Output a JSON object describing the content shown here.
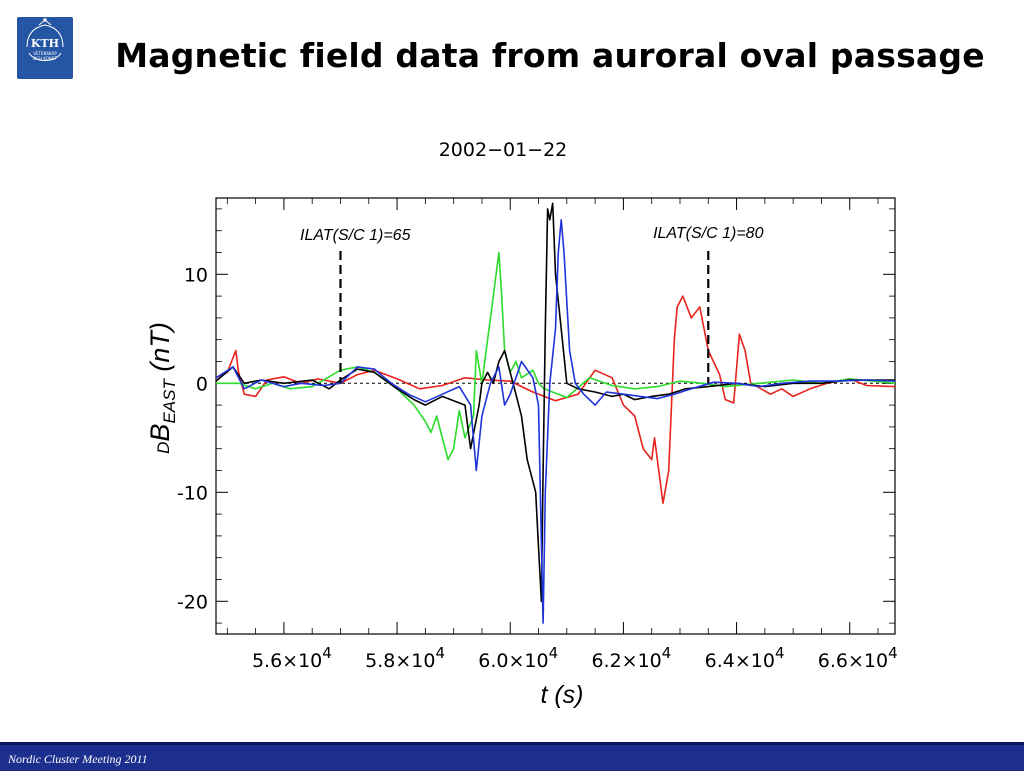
{
  "slide": {
    "title": "Magnetic field data from auroral oval passage",
    "footer": "Nordic Cluster Meeting 2011"
  },
  "logo": {
    "text": "KTH",
    "subtext_1": "VETENSKAP",
    "subtext_2": "OCH KONST"
  },
  "colors": {
    "footer_bg": "#1c2f8f",
    "logo_bg": "#2456a3"
  },
  "chart_data": {
    "type": "line",
    "title": "2002−01−22",
    "xlabel": "t (s)",
    "ylabel_prefix": "D",
    "ylabel_main": "B",
    "ylabel_sub": "EAST",
    "ylabel_unit": " (nT)",
    "xlim": [
      54800,
      66800
    ],
    "ylim": [
      -23,
      17
    ],
    "x_ticks": [
      {
        "value": 56000,
        "label": "5.6×10",
        "exp": "4"
      },
      {
        "value": 58000,
        "label": "5.8×10",
        "exp": "4"
      },
      {
        "value": 60000,
        "label": "6.0×10",
        "exp": "4"
      },
      {
        "value": 62000,
        "label": "6.2×10",
        "exp": "4"
      },
      {
        "value": 64000,
        "label": "6.4×10",
        "exp": "4"
      },
      {
        "value": 66000,
        "label": "6.6×10",
        "exp": "4"
      }
    ],
    "y_ticks": [
      {
        "value": 10,
        "label": "10"
      },
      {
        "value": 0,
        "label": "0"
      },
      {
        "value": -10,
        "label": "-10"
      },
      {
        "value": -20,
        "label": "-20"
      }
    ],
    "zero_line": true,
    "annotations": [
      {
        "text": "ILAT(S/C 1)=65",
        "x": 57000
      },
      {
        "text": "ILAT(S/C 1)=80",
        "x": 63500
      }
    ],
    "series": [
      {
        "color": "#e8231d",
        "points": [
          [
            54800,
            0.5
          ],
          [
            55000,
            1
          ],
          [
            55150,
            3
          ],
          [
            55200,
            1
          ],
          [
            55300,
            -1
          ],
          [
            55500,
            -1.2
          ],
          [
            55700,
            0.3
          ],
          [
            56000,
            0.6
          ],
          [
            56300,
            0
          ],
          [
            56600,
            0.4
          ],
          [
            57000,
            0
          ],
          [
            57300,
            0.8
          ],
          [
            57600,
            1.2
          ],
          [
            58000,
            0.4
          ],
          [
            58400,
            -0.5
          ],
          [
            58800,
            -0.2
          ],
          [
            59200,
            0.5
          ],
          [
            59600,
            0.3
          ],
          [
            60000,
            0.2
          ],
          [
            60400,
            -0.8
          ],
          [
            60800,
            -1.6
          ],
          [
            61200,
            -1.0
          ],
          [
            61500,
            1.2
          ],
          [
            61800,
            0.5
          ],
          [
            62000,
            -2
          ],
          [
            62200,
            -3
          ],
          [
            62350,
            -6
          ],
          [
            62500,
            -7
          ],
          [
            62550,
            -5
          ],
          [
            62700,
            -11
          ],
          [
            62800,
            -8
          ],
          [
            62850,
            -2
          ],
          [
            62900,
            4
          ],
          [
            62950,
            7
          ],
          [
            63050,
            8
          ],
          [
            63200,
            6
          ],
          [
            63350,
            7
          ],
          [
            63500,
            3
          ],
          [
            63700,
            0.8
          ],
          [
            63800,
            -1.5
          ],
          [
            63950,
            -1.8
          ],
          [
            64050,
            4.5
          ],
          [
            64150,
            3
          ],
          [
            64250,
            0
          ],
          [
            64400,
            -0.4
          ],
          [
            64600,
            -1
          ],
          [
            64800,
            -0.5
          ],
          [
            65000,
            -1.2
          ],
          [
            65300,
            -0.5
          ],
          [
            65600,
            0
          ],
          [
            66000,
            0.4
          ],
          [
            66300,
            -0.2
          ],
          [
            66800,
            -0.3
          ]
        ]
      },
      {
        "color": "#2ddc2d",
        "points": [
          [
            54800,
            0
          ],
          [
            55200,
            0
          ],
          [
            55500,
            -0.5
          ],
          [
            55800,
            0
          ],
          [
            56100,
            -0.5
          ],
          [
            56500,
            -0.3
          ],
          [
            57000,
            1.2
          ],
          [
            57300,
            1.5
          ],
          [
            57600,
            1
          ],
          [
            58000,
            -0.5
          ],
          [
            58300,
            -2
          ],
          [
            58500,
            -3.5
          ],
          [
            58600,
            -4.5
          ],
          [
            58700,
            -3
          ],
          [
            58800,
            -5
          ],
          [
            58900,
            -7
          ],
          [
            59000,
            -6
          ],
          [
            59100,
            -2.5
          ],
          [
            59200,
            -5
          ],
          [
            59350,
            -3
          ],
          [
            59400,
            3
          ],
          [
            59500,
            0
          ],
          [
            59600,
            4
          ],
          [
            59700,
            8
          ],
          [
            59800,
            12
          ],
          [
            59850,
            8
          ],
          [
            59900,
            3
          ],
          [
            60000,
            1
          ],
          [
            60100,
            2
          ],
          [
            60200,
            0.5
          ],
          [
            60400,
            1.2
          ],
          [
            60500,
            0
          ],
          [
            60600,
            -0.5
          ],
          [
            61000,
            -1.3
          ],
          [
            61400,
            0.5
          ],
          [
            61800,
            -0.2
          ],
          [
            62200,
            -0.5
          ],
          [
            62600,
            -0.3
          ],
          [
            63000,
            0.2
          ],
          [
            63400,
            0
          ],
          [
            63800,
            -0.3
          ],
          [
            64400,
            0
          ],
          [
            65000,
            0.3
          ],
          [
            65500,
            0
          ],
          [
            66000,
            0.4
          ],
          [
            66800,
            0
          ]
        ]
      },
      {
        "color": "#000000",
        "points": [
          [
            54800,
            0.2
          ],
          [
            55100,
            1.5
          ],
          [
            55300,
            0
          ],
          [
            55600,
            0.3
          ],
          [
            56000,
            0
          ],
          [
            56500,
            0.3
          ],
          [
            56800,
            -0.5
          ],
          [
            57000,
            0.3
          ],
          [
            57300,
            1.3
          ],
          [
            57600,
            1
          ],
          [
            58000,
            -0.5
          ],
          [
            58300,
            -1.5
          ],
          [
            58500,
            -2
          ],
          [
            58800,
            -1.2
          ],
          [
            59200,
            -2
          ],
          [
            59300,
            -6
          ],
          [
            59450,
            -2
          ],
          [
            59500,
            0
          ],
          [
            59600,
            1
          ],
          [
            59700,
            0
          ],
          [
            59800,
            2
          ],
          [
            59900,
            3
          ],
          [
            60000,
            1
          ],
          [
            60100,
            -1
          ],
          [
            60200,
            -3
          ],
          [
            60300,
            -7
          ],
          [
            60400,
            -9
          ],
          [
            60450,
            -10
          ],
          [
            60500,
            -15
          ],
          [
            60550,
            -20
          ],
          [
            60580,
            -8
          ],
          [
            60620,
            5
          ],
          [
            60660,
            16
          ],
          [
            60700,
            15
          ],
          [
            60750,
            16.5
          ],
          [
            60800,
            10
          ],
          [
            60900,
            5
          ],
          [
            61000,
            0
          ],
          [
            61200,
            -0.5
          ],
          [
            61500,
            -0.8
          ],
          [
            61800,
            -1.2
          ],
          [
            62000,
            -1
          ],
          [
            62200,
            -1.5
          ],
          [
            62500,
            -1.2
          ],
          [
            62800,
            -1
          ],
          [
            63100,
            -0.5
          ],
          [
            63500,
            -0.3
          ],
          [
            64000,
            0
          ],
          [
            64500,
            -0.3
          ],
          [
            65000,
            0
          ],
          [
            65500,
            0
          ],
          [
            66000,
            0.3
          ],
          [
            66800,
            0.3
          ]
        ]
      },
      {
        "color": "#1f34d9",
        "points": [
          [
            54800,
            0.5
          ],
          [
            55100,
            1.5
          ],
          [
            55300,
            -0.5
          ],
          [
            55600,
            0.3
          ],
          [
            56000,
            -0.3
          ],
          [
            56300,
            0
          ],
          [
            56700,
            -0.2
          ],
          [
            57000,
            0
          ],
          [
            57300,
            1.5
          ],
          [
            57600,
            1.3
          ],
          [
            57900,
            0
          ],
          [
            58200,
            -1
          ],
          [
            58500,
            -1.7
          ],
          [
            58800,
            -1
          ],
          [
            59100,
            -0.3
          ],
          [
            59300,
            -2
          ],
          [
            59400,
            -8
          ],
          [
            59500,
            -3
          ],
          [
            59650,
            0
          ],
          [
            59800,
            1.5
          ],
          [
            59900,
            -2
          ],
          [
            60000,
            -1
          ],
          [
            60100,
            0.5
          ],
          [
            60200,
            2
          ],
          [
            60400,
            0.5
          ],
          [
            60500,
            -2
          ],
          [
            60580,
            -22
          ],
          [
            60620,
            -10
          ],
          [
            60700,
            0
          ],
          [
            60800,
            5
          ],
          [
            60850,
            12
          ],
          [
            60900,
            15
          ],
          [
            60950,
            12
          ],
          [
            61050,
            3
          ],
          [
            61150,
            0
          ],
          [
            61300,
            -1
          ],
          [
            61500,
            -2
          ],
          [
            61700,
            -0.8
          ],
          [
            62000,
            -1
          ],
          [
            62300,
            -1.2
          ],
          [
            62600,
            -1.4
          ],
          [
            62900,
            -1
          ],
          [
            63200,
            -0.5
          ],
          [
            63600,
            0.1
          ],
          [
            64000,
            0
          ],
          [
            64400,
            -0.3
          ],
          [
            64800,
            0
          ],
          [
            65300,
            0.2
          ],
          [
            65800,
            0.2
          ],
          [
            66300,
            0.3
          ],
          [
            66800,
            0.2
          ]
        ]
      }
    ]
  }
}
